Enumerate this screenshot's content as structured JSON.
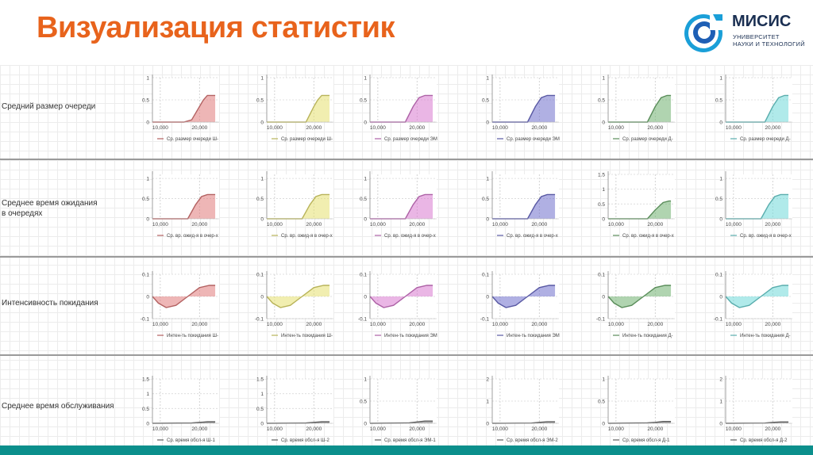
{
  "header": {
    "title": "Визуализация статистик"
  },
  "logo": {
    "name": "МИСИС",
    "sub1": "УНИВЕРСИТЕТ",
    "sub2": "НАУКИ И ТЕХНОЛОГИЙ",
    "icon": "misis-logo-icon"
  },
  "colors": {
    "title": "#e8631c",
    "bar": "#0b8f8c",
    "logo": "#1a2f52"
  },
  "rows": [
    {
      "label_lines": [
        "Средний размер очереди"
      ]
    },
    {
      "label_lines": [
        "Среднее время ожидания",
        "в очередях"
      ]
    },
    {
      "label_lines": [
        "Интенсивность покидания"
      ]
    },
    {
      "label_lines": [
        "Среднее время обслуживания"
      ]
    }
  ],
  "chart_data": [
    {
      "type": "area",
      "row": 0,
      "series_name": "Ср. размер очереди Ш-",
      "color": "#e07a7a",
      "x_ticks": [
        "10,000",
        "20,000"
      ],
      "y_ticks": [
        "0",
        "0.5",
        "1"
      ],
      "ylim": [
        0,
        1
      ],
      "points": [
        [
          8000,
          0
        ],
        [
          16000,
          0
        ],
        [
          18000,
          0.05
        ],
        [
          20000,
          0.35
        ],
        [
          21000,
          0.5
        ],
        [
          22000,
          0.6
        ],
        [
          24000,
          0.6
        ]
      ]
    },
    {
      "type": "area",
      "row": 0,
      "series_name": "Ср. размер очереди Ш-",
      "color": "#e6e070",
      "x_ticks": [
        "10,000",
        "20,000"
      ],
      "y_ticks": [
        "0",
        "0.5",
        "1"
      ],
      "ylim": [
        0,
        1
      ],
      "points": [
        [
          8000,
          0
        ],
        [
          18000,
          0
        ],
        [
          20000,
          0.35
        ],
        [
          21000,
          0.5
        ],
        [
          22000,
          0.6
        ],
        [
          24000,
          0.6
        ]
      ]
    },
    {
      "type": "area",
      "row": 0,
      "series_name": "Ср. размер очереди ЭМ",
      "color": "#d87ad0",
      "x_ticks": [
        "10,000",
        "20,000"
      ],
      "y_ticks": [
        "0",
        "0.5",
        "1"
      ],
      "ylim": [
        0,
        1
      ],
      "points": [
        [
          8000,
          0
        ],
        [
          17000,
          0
        ],
        [
          19000,
          0.35
        ],
        [
          20500,
          0.55
        ],
        [
          22000,
          0.6
        ],
        [
          24000,
          0.6
        ]
      ]
    },
    {
      "type": "area",
      "row": 0,
      "series_name": "Ср. размер очереди ЭМ",
      "color": "#6f6fcc",
      "x_ticks": [
        "10,000",
        "20,000"
      ],
      "y_ticks": [
        "0",
        "0.5",
        "1"
      ],
      "ylim": [
        0,
        1
      ],
      "points": [
        [
          8000,
          0
        ],
        [
          17000,
          0
        ],
        [
          19000,
          0.35
        ],
        [
          20500,
          0.55
        ],
        [
          22000,
          0.6
        ],
        [
          24000,
          0.6
        ]
      ]
    },
    {
      "type": "area",
      "row": 0,
      "series_name": "Ср. размер очереди Д-",
      "color": "#70b070",
      "x_ticks": [
        "10,000",
        "20,000"
      ],
      "y_ticks": [
        "0",
        "0.5",
        "1"
      ],
      "ylim": [
        0,
        1
      ],
      "points": [
        [
          8000,
          0
        ],
        [
          18000,
          0
        ],
        [
          20000,
          0.35
        ],
        [
          21500,
          0.55
        ],
        [
          23000,
          0.6
        ],
        [
          24000,
          0.6
        ]
      ]
    },
    {
      "type": "area",
      "row": 0,
      "series_name": "Ср. размер очереди Д-",
      "color": "#70d8d8",
      "x_ticks": [
        "10,000",
        "20,000"
      ],
      "y_ticks": [
        "0",
        "0.5",
        "1"
      ],
      "ylim": [
        0,
        1
      ],
      "points": [
        [
          8000,
          0
        ],
        [
          18000,
          0
        ],
        [
          20000,
          0.35
        ],
        [
          21500,
          0.55
        ],
        [
          23000,
          0.6
        ],
        [
          24000,
          0.6
        ]
      ]
    },
    {
      "type": "area",
      "row": 1,
      "series_name": "Ср. вр. ожид-я в очер-х",
      "color": "#e07a7a",
      "x_ticks": [
        "10,000",
        "20,000"
      ],
      "y_ticks": [
        "0",
        "0.5",
        "1"
      ],
      "ylim": [
        0,
        1.1
      ],
      "points": [
        [
          8000,
          0
        ],
        [
          17000,
          0
        ],
        [
          19000,
          0.35
        ],
        [
          20500,
          0.55
        ],
        [
          22000,
          0.6
        ],
        [
          24000,
          0.6
        ]
      ]
    },
    {
      "type": "area",
      "row": 1,
      "series_name": "Ср. вр. ожид-я в очер-х",
      "color": "#e6e070",
      "x_ticks": [
        "10,000",
        "20,000"
      ],
      "y_ticks": [
        "0",
        "0.5",
        "1"
      ],
      "ylim": [
        0,
        1.1
      ],
      "points": [
        [
          8000,
          0
        ],
        [
          17000,
          0
        ],
        [
          19000,
          0.35
        ],
        [
          20500,
          0.55
        ],
        [
          22000,
          0.6
        ],
        [
          24000,
          0.6
        ]
      ]
    },
    {
      "type": "area",
      "row": 1,
      "series_name": "Ср. вр. ожид-я в очер-х",
      "color": "#d87ad0",
      "x_ticks": [
        "10,000",
        "20,000"
      ],
      "y_ticks": [
        "0",
        "0.5",
        "1"
      ],
      "ylim": [
        0,
        1.1
      ],
      "points": [
        [
          8000,
          0
        ],
        [
          17000,
          0
        ],
        [
          19000,
          0.35
        ],
        [
          20500,
          0.55
        ],
        [
          22000,
          0.6
        ],
        [
          24000,
          0.6
        ]
      ]
    },
    {
      "type": "area",
      "row": 1,
      "series_name": "Ср. вр. ожид-я в очер-х",
      "color": "#6f6fcc",
      "x_ticks": [
        "10,000",
        "20,000"
      ],
      "y_ticks": [
        "0",
        "0.5",
        "1"
      ],
      "ylim": [
        0,
        1.1
      ],
      "points": [
        [
          8000,
          0
        ],
        [
          17000,
          0
        ],
        [
          19000,
          0.35
        ],
        [
          20500,
          0.55
        ],
        [
          22000,
          0.6
        ],
        [
          24000,
          0.6
        ]
      ]
    },
    {
      "type": "area",
      "row": 1,
      "series_name": "Ср. вр. ожид-я в очер-х",
      "color": "#70b070",
      "x_ticks": [
        "10,000",
        "20,000"
      ],
      "y_ticks": [
        "0",
        "0.5",
        "1",
        "1.5"
      ],
      "ylim": [
        0,
        1.5
      ],
      "points": [
        [
          8000,
          0
        ],
        [
          18000,
          0
        ],
        [
          20000,
          0.3
        ],
        [
          22000,
          0.55
        ],
        [
          23500,
          0.6
        ],
        [
          24000,
          0.6
        ]
      ]
    },
    {
      "type": "area",
      "row": 1,
      "series_name": "Ср. вр. ожид-я в очер-х",
      "color": "#70d8d8",
      "x_ticks": [
        "10,000",
        "20,000"
      ],
      "y_ticks": [
        "0",
        "0.5",
        "1"
      ],
      "ylim": [
        0,
        1.1
      ],
      "points": [
        [
          8000,
          0
        ],
        [
          17000,
          0
        ],
        [
          19000,
          0.35
        ],
        [
          20500,
          0.55
        ],
        [
          22000,
          0.6
        ],
        [
          24000,
          0.6
        ]
      ]
    },
    {
      "type": "area",
      "row": 2,
      "series_name": "Интен-ть покидания Ш-",
      "color": "#e07a7a",
      "x_ticks": [
        "10,000",
        "20,000"
      ],
      "y_ticks": [
        "0.1",
        "0",
        "-0.1"
      ],
      "ylim": [
        -0.1,
        0.1
      ],
      "points": [
        [
          8000,
          0
        ],
        [
          9500,
          -0.03
        ],
        [
          11500,
          -0.05
        ],
        [
          14000,
          -0.04
        ],
        [
          17000,
          0
        ],
        [
          20000,
          0.04
        ],
        [
          22500,
          0.05
        ],
        [
          24000,
          0.05
        ]
      ]
    },
    {
      "type": "area",
      "row": 2,
      "series_name": "Интен-ть покидания Ш-",
      "color": "#e6e070",
      "x_ticks": [
        "10,000",
        "20,000"
      ],
      "y_ticks": [
        "0.1",
        "0",
        "-0.1"
      ],
      "ylim": [
        -0.1,
        0.1
      ],
      "points": [
        [
          8000,
          0
        ],
        [
          9500,
          -0.03
        ],
        [
          11500,
          -0.05
        ],
        [
          14000,
          -0.04
        ],
        [
          17000,
          0
        ],
        [
          20000,
          0.04
        ],
        [
          22500,
          0.05
        ],
        [
          24000,
          0.05
        ]
      ]
    },
    {
      "type": "area",
      "row": 2,
      "series_name": "Интен-ть покидания ЭМ",
      "color": "#d87ad0",
      "x_ticks": [
        "10,000",
        "20,000"
      ],
      "y_ticks": [
        "0.1",
        "0",
        "-0.1"
      ],
      "ylim": [
        -0.1,
        0.1
      ],
      "points": [
        [
          8000,
          0
        ],
        [
          9500,
          -0.03
        ],
        [
          11500,
          -0.05
        ],
        [
          14000,
          -0.04
        ],
        [
          17000,
          0
        ],
        [
          20000,
          0.04
        ],
        [
          22500,
          0.05
        ],
        [
          24000,
          0.05
        ]
      ]
    },
    {
      "type": "area",
      "row": 2,
      "series_name": "Интен-ть покидания ЭМ",
      "color": "#6f6fcc",
      "x_ticks": [
        "10,000",
        "20,000"
      ],
      "y_ticks": [
        "0.1",
        "0",
        "-0.1"
      ],
      "ylim": [
        -0.1,
        0.1
      ],
      "points": [
        [
          8000,
          0
        ],
        [
          9500,
          -0.03
        ],
        [
          11500,
          -0.05
        ],
        [
          14000,
          -0.04
        ],
        [
          17000,
          0
        ],
        [
          20000,
          0.04
        ],
        [
          22500,
          0.05
        ],
        [
          24000,
          0.05
        ]
      ]
    },
    {
      "type": "area",
      "row": 2,
      "series_name": "Интен-ть покидания Д-",
      "color": "#70b070",
      "x_ticks": [
        "10,000",
        "20,000"
      ],
      "y_ticks": [
        "0.1",
        "0",
        "-0.1"
      ],
      "ylim": [
        -0.1,
        0.1
      ],
      "points": [
        [
          8000,
          0
        ],
        [
          9500,
          -0.03
        ],
        [
          11500,
          -0.05
        ],
        [
          14000,
          -0.04
        ],
        [
          17000,
          0
        ],
        [
          20000,
          0.04
        ],
        [
          22500,
          0.05
        ],
        [
          24000,
          0.05
        ]
      ]
    },
    {
      "type": "area",
      "row": 2,
      "series_name": "Интен-ть покидания Д-",
      "color": "#70d8d8",
      "x_ticks": [
        "10,000",
        "20,000"
      ],
      "y_ticks": [
        "0.1",
        "0",
        "-0.1"
      ],
      "ylim": [
        -0.1,
        0.1
      ],
      "points": [
        [
          8000,
          0
        ],
        [
          9500,
          -0.03
        ],
        [
          11500,
          -0.05
        ],
        [
          14000,
          -0.04
        ],
        [
          17000,
          0
        ],
        [
          20000,
          0.04
        ],
        [
          22500,
          0.05
        ],
        [
          24000,
          0.05
        ]
      ]
    },
    {
      "type": "area",
      "row": 3,
      "series_name": "Ср. время обсл-я Ш-1",
      "color": "#777777",
      "x_ticks": [
        "10,000",
        "20,000"
      ],
      "y_ticks": [
        "0",
        "0.5",
        "1",
        "1.5"
      ],
      "ylim": [
        0,
        1.5
      ],
      "points": [
        [
          8000,
          0
        ],
        [
          18000,
          0.01
        ],
        [
          20000,
          0.03
        ],
        [
          22000,
          0.05
        ],
        [
          24000,
          0.05
        ]
      ]
    },
    {
      "type": "area",
      "row": 3,
      "series_name": "Ср. время обсл-я Ш-2",
      "color": "#777777",
      "x_ticks": [
        "10,000",
        "20,000"
      ],
      "y_ticks": [
        "0",
        "0.5",
        "1",
        "1.5"
      ],
      "ylim": [
        0,
        1.5
      ],
      "points": [
        [
          8000,
          0
        ],
        [
          18000,
          0.01
        ],
        [
          20000,
          0.03
        ],
        [
          22000,
          0.05
        ],
        [
          24000,
          0.05
        ]
      ]
    },
    {
      "type": "area",
      "row": 3,
      "series_name": "Ср. время обсл-я ЭМ-1",
      "color": "#777777",
      "x_ticks": [
        "10,000",
        "20,000"
      ],
      "y_ticks": [
        "0",
        "0.5",
        "1"
      ],
      "ylim": [
        0,
        1
      ],
      "points": [
        [
          8000,
          0
        ],
        [
          18000,
          0.01
        ],
        [
          20000,
          0.03
        ],
        [
          22000,
          0.05
        ],
        [
          24000,
          0.05
        ]
      ]
    },
    {
      "type": "area",
      "row": 3,
      "series_name": "Ср. время обсл-я ЭМ-2",
      "color": "#777777",
      "x_ticks": [
        "10,000",
        "20,000"
      ],
      "y_ticks": [
        "0",
        "1",
        "2"
      ],
      "ylim": [
        0,
        2
      ],
      "points": [
        [
          8000,
          0
        ],
        [
          18000,
          0.01
        ],
        [
          20000,
          0.04
        ],
        [
          22000,
          0.07
        ],
        [
          24000,
          0.07
        ]
      ]
    },
    {
      "type": "area",
      "row": 3,
      "series_name": "Ср. время обсл-я Д-1",
      "color": "#777777",
      "x_ticks": [
        "10,000",
        "20,000"
      ],
      "y_ticks": [
        "0",
        "0.5",
        "1"
      ],
      "ylim": [
        0,
        1
      ],
      "points": [
        [
          8000,
          0
        ],
        [
          18000,
          0.01
        ],
        [
          20000,
          0.02
        ],
        [
          22000,
          0.04
        ],
        [
          24000,
          0.04
        ]
      ]
    },
    {
      "type": "area",
      "row": 3,
      "series_name": "Ср. время обсл-я Д-2",
      "color": "#777777",
      "x_ticks": [
        "10,000",
        "20,000"
      ],
      "y_ticks": [
        "0",
        "1",
        "2"
      ],
      "ylim": [
        0,
        2
      ],
      "points": [
        [
          8000,
          0
        ],
        [
          18000,
          0.01
        ],
        [
          20000,
          0.04
        ],
        [
          22000,
          0.06
        ],
        [
          24000,
          0.06
        ]
      ]
    }
  ]
}
